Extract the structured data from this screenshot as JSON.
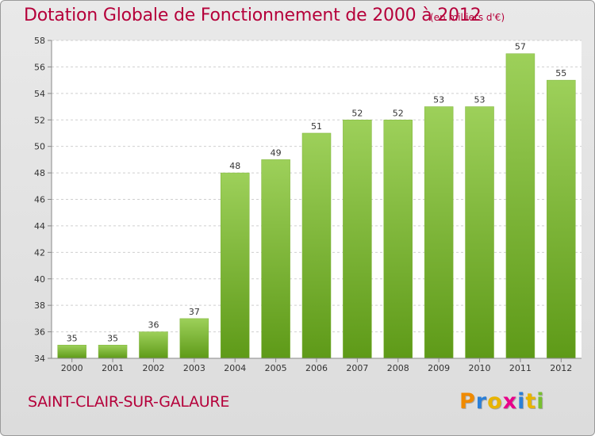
{
  "header": {
    "title": "Dotation Globale de Fonctionnement de 2000 à 2012",
    "unit": "(en milliers d'€)"
  },
  "footer": {
    "commune": "SAINT-CLAIR-SUR-GALAURE",
    "logo_text": "Proxiti",
    "logo_letter_colors": [
      "#f08a00",
      "#2b7fd8",
      "#e8b400",
      "#e8008a",
      "#2b7fd8",
      "#e8b400",
      "#78c030"
    ]
  },
  "colors": {
    "accent": "#b5003a",
    "bar_top": "#9dd05a",
    "bar_bottom": "#5e9a18"
  },
  "chart_data": {
    "type": "bar",
    "categories": [
      "2000",
      "2001",
      "2002",
      "2003",
      "2004",
      "2005",
      "2006",
      "2007",
      "2008",
      "2009",
      "2010",
      "2011",
      "2012"
    ],
    "values": [
      35,
      35,
      36,
      37,
      48,
      49,
      51,
      52,
      52,
      53,
      53,
      57,
      55
    ],
    "ylim": [
      34,
      58
    ],
    "yticks": [
      34,
      36,
      38,
      40,
      42,
      44,
      46,
      48,
      50,
      52,
      54,
      56,
      58
    ],
    "grid": true
  }
}
